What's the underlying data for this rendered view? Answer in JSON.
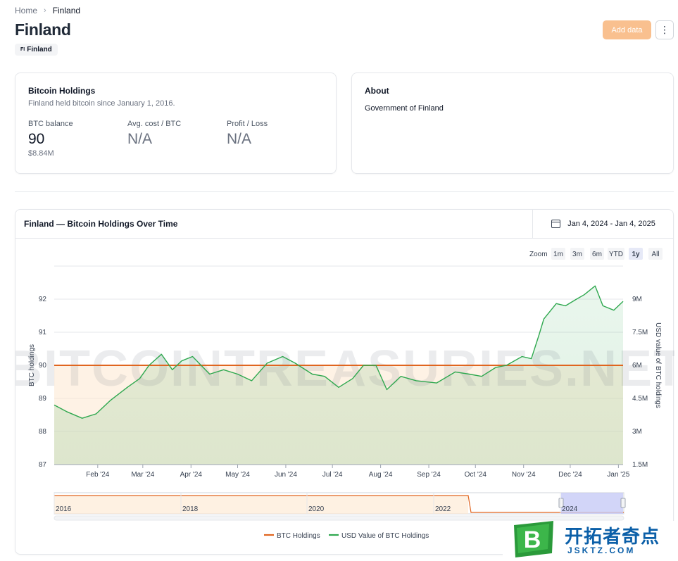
{
  "breadcrumb": {
    "home": "Home",
    "current": "Finland"
  },
  "page": {
    "title": "Finland",
    "flag_code": "FI",
    "flag_label": "Finland",
    "add_button": "Add data",
    "more_button": "⋮"
  },
  "holdings": {
    "title": "Bitcoin Holdings",
    "subtitle": "Finland held bitcoin since January 1, 2016.",
    "btc_label": "BTC balance",
    "btc_value": "90",
    "btc_usd": "$8.84M",
    "cost_label": "Avg. cost / BTC",
    "cost_value": "N/A",
    "pl_label": "Profit / Loss",
    "pl_value": "N/A"
  },
  "about": {
    "title": "About",
    "text": "Government of Finland"
  },
  "chart_section": {
    "title": "Finland — Bitcoin Holdings Over Time",
    "date_range": "Jan 4, 2024 - Jan 4, 2025",
    "zoom_label": "Zoom",
    "zoom_options": [
      "1m",
      "3m",
      "6m",
      "YTD",
      "1y",
      "All"
    ],
    "zoom_selected": "1y",
    "watermark": "BITCOINTREASURIES.NET",
    "legend": [
      {
        "name": "BTC Holdings",
        "color": "#e0651f"
      },
      {
        "name": "USD Value of BTC Holdings",
        "color": "#2fa84f"
      }
    ],
    "navigator_years": [
      "2016",
      "2018",
      "2020",
      "2022",
      "2024"
    ]
  },
  "chart_data": {
    "type": "line",
    "title": "Finland — Bitcoin Holdings Over Time",
    "ylabel": "BTC holdings",
    "y2label": "USD value of BTC holdings",
    "x_tick_labels": [
      "Feb '24",
      "Mar '24",
      "Apr '24",
      "May '24",
      "Jun '24",
      "Jul '24",
      "Aug '24",
      "Sep '24",
      "Oct '24",
      "Nov '24",
      "Dec '24",
      "Jan '25"
    ],
    "x_ticks": [
      "2024-02-01",
      "2024-03-01",
      "2024-04-01",
      "2024-05-01",
      "2024-06-01",
      "2024-07-01",
      "2024-08-01",
      "2024-09-01",
      "2024-10-01",
      "2024-11-01",
      "2024-12-01",
      "2025-01-01"
    ],
    "xlim": [
      "2024-01-04",
      "2025-01-04"
    ],
    "ylim": [
      87,
      93
    ],
    "y_ticks": [
      87,
      88,
      89,
      90,
      91,
      92
    ],
    "y2lim": [
      1.5,
      10.5
    ],
    "y2_ticks": [
      1.5,
      3,
      4.5,
      6,
      7.5,
      9
    ],
    "y2_tick_labels": [
      "1.5M",
      "3M",
      "4.5M",
      "6M",
      "7.5M",
      "9M"
    ],
    "grid": true,
    "legend": "bottom",
    "series": [
      {
        "name": "BTC Holdings",
        "axis": "left",
        "unit": "BTC",
        "x": [
          "2024-01-04",
          "2025-01-04"
        ],
        "y": [
          90,
          90
        ]
      },
      {
        "name": "USD Value of BTC Holdings",
        "axis": "right",
        "unit": "USD millions",
        "x": [
          "2024-01-04",
          "2024-01-12",
          "2024-01-22",
          "2024-01-31",
          "2024-02-09",
          "2024-02-20",
          "2024-02-28",
          "2024-03-05",
          "2024-03-13",
          "2024-03-20",
          "2024-03-26",
          "2024-04-02",
          "2024-04-13",
          "2024-04-22",
          "2024-05-01",
          "2024-05-10",
          "2024-05-20",
          "2024-05-30",
          "2024-06-07",
          "2024-06-18",
          "2024-06-26",
          "2024-07-05",
          "2024-07-14",
          "2024-07-21",
          "2024-07-29",
          "2024-08-05",
          "2024-08-14",
          "2024-08-24",
          "2024-09-06",
          "2024-09-18",
          "2024-09-27",
          "2024-10-05",
          "2024-10-14",
          "2024-10-21",
          "2024-10-31",
          "2024-11-06",
          "2024-11-11",
          "2024-11-14",
          "2024-11-22",
          "2024-11-28",
          "2024-12-05",
          "2024-12-10",
          "2024-12-17",
          "2024-12-22",
          "2024-12-29",
          "2025-01-04"
        ],
        "y": [
          4.2,
          3.9,
          3.6,
          3.8,
          4.4,
          5.0,
          5.4,
          6.0,
          6.5,
          5.8,
          6.2,
          6.4,
          5.6,
          5.8,
          5.6,
          5.3,
          6.1,
          6.4,
          6.1,
          5.6,
          5.5,
          5.0,
          5.4,
          6.0,
          6.0,
          4.9,
          5.5,
          5.3,
          5.2,
          5.7,
          5.6,
          5.5,
          5.9,
          6.0,
          6.4,
          6.3,
          7.4,
          8.1,
          8.8,
          8.7,
          9.0,
          9.2,
          9.6,
          8.7,
          8.5,
          8.9
        ]
      }
    ]
  }
}
